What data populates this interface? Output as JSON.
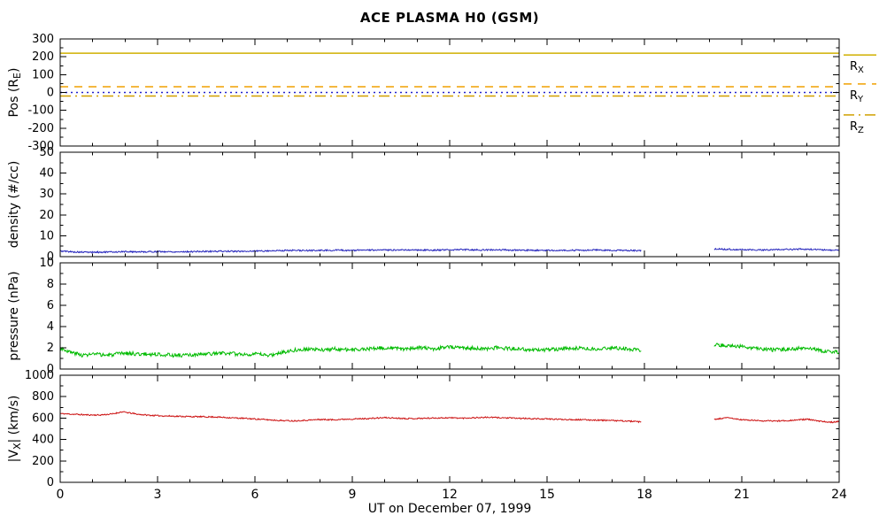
{
  "chart_data": {
    "type": "line",
    "title": "ACE PLASMA H0 (GSM)",
    "x_axis": {
      "label": "UT on December 07, 1999",
      "min": 0,
      "max": 24,
      "major_ticks": [
        0,
        3,
        6,
        9,
        12,
        15,
        18,
        21,
        24
      ],
      "minor_step": 1
    },
    "data_gap_hours": [
      17.9,
      20.15
    ],
    "colors": {
      "background": "#ffffff",
      "axis": "#000000",
      "rx": "#d1b000",
      "ry": "#f0a000",
      "rz": "#d1a000",
      "zero_line": "#2222cc",
      "density": "#2222bb",
      "pressure": "#00bb00",
      "speed": "#cc1111"
    },
    "panels": [
      {
        "id": "position",
        "ylabel": {
          "pre": "Pos (R",
          "sub": "E",
          "post": ")"
        },
        "ymin": -300,
        "ymax": 300,
        "yticks": [
          -300,
          -200,
          -100,
          0,
          100,
          200,
          300
        ],
        "yminor_step": 50,
        "ref_lines": [
          {
            "name": "RX",
            "value": 220,
            "style": "solid",
            "color_key": "rx"
          },
          {
            "name": "RY",
            "value": 32,
            "style": "dashed",
            "color_key": "ry"
          },
          {
            "name": "RZ",
            "value": -20,
            "style": "dashdot",
            "color_key": "rz"
          },
          {
            "name": "zero",
            "value": 0,
            "style": "dotted",
            "color_key": "zero_line"
          }
        ],
        "legend": [
          {
            "label": {
              "pre": "R",
              "sub": "X"
            },
            "style": "solid",
            "color_key": "rx",
            "y_frac": 0.15
          },
          {
            "label": {
              "pre": "R",
              "sub": "Y"
            },
            "style": "dashed",
            "color_key": "ry",
            "y_frac": 0.42
          },
          {
            "label": {
              "pre": "R",
              "sub": "Z"
            },
            "style": "dashdot",
            "color_key": "rz",
            "y_frac": 0.71
          }
        ]
      },
      {
        "id": "density",
        "ylabel": {
          "pre": "density (#/cc)",
          "sub": "",
          "post": ""
        },
        "ymin": 0,
        "ymax": 50,
        "yticks": [
          0,
          10,
          20,
          30,
          40,
          50
        ],
        "yminor_step": 5,
        "series": {
          "color_key": "density",
          "noise": 0.35,
          "seed": 5,
          "segments": [
            [
              [
                0,
                2.7
              ],
              [
                0.5,
                2.2
              ],
              [
                1,
                2.1
              ],
              [
                1.5,
                2.2
              ],
              [
                2,
                2.4
              ],
              [
                2.5,
                2.3
              ],
              [
                3,
                2.4
              ],
              [
                3.5,
                2.3
              ],
              [
                4,
                2.4
              ],
              [
                4.5,
                2.5
              ],
              [
                5,
                2.6
              ],
              [
                5.5,
                2.5
              ],
              [
                6,
                2.7
              ],
              [
                6.5,
                2.8
              ],
              [
                7,
                3.0
              ],
              [
                7.5,
                2.9
              ],
              [
                8,
                3.0
              ],
              [
                8.5,
                3.1
              ],
              [
                9,
                3.0
              ],
              [
                9.5,
                3.2
              ],
              [
                10,
                3.1
              ],
              [
                10.5,
                3.3
              ],
              [
                11,
                3.2
              ],
              [
                11.5,
                3.1
              ],
              [
                12,
                3.3
              ],
              [
                12.5,
                3.4
              ],
              [
                13,
                3.2
              ],
              [
                13.5,
                3.3
              ],
              [
                14,
                3.1
              ],
              [
                14.5,
                3.0
              ],
              [
                15,
                3.0
              ],
              [
                15.5,
                3.1
              ],
              [
                16,
                3.0
              ],
              [
                16.5,
                3.2
              ],
              [
                17,
                3.1
              ],
              [
                17.5,
                3.0
              ],
              [
                17.9,
                2.9
              ]
            ],
            [
              [
                20.15,
                3.7
              ],
              [
                20.5,
                3.5
              ],
              [
                21,
                3.4
              ],
              [
                21.5,
                3.2
              ],
              [
                22,
                3.3
              ],
              [
                22.5,
                3.5
              ],
              [
                23,
                3.6
              ],
              [
                23.5,
                3.2
              ],
              [
                24,
                3.0
              ]
            ]
          ]
        }
      },
      {
        "id": "pressure",
        "ylabel": {
          "pre": "pressure (nPa)",
          "sub": "",
          "post": ""
        },
        "ymin": 0,
        "ymax": 10,
        "yticks": [
          0,
          2,
          4,
          6,
          8,
          10
        ],
        "yminor_step": 1,
        "series": {
          "color_key": "pressure",
          "noise": 0.18,
          "seed": 3,
          "segments": [
            [
              [
                0,
                2.0
              ],
              [
                0.3,
                1.6
              ],
              [
                0.7,
                1.3
              ],
              [
                1,
                1.4
              ],
              [
                1.5,
                1.3
              ],
              [
                2,
                1.5
              ],
              [
                2.5,
                1.4
              ],
              [
                3,
                1.4
              ],
              [
                3.5,
                1.3
              ],
              [
                4,
                1.3
              ],
              [
                4.5,
                1.4
              ],
              [
                5,
                1.5
              ],
              [
                5.5,
                1.4
              ],
              [
                6,
                1.4
              ],
              [
                6.5,
                1.3
              ],
              [
                7,
                1.7
              ],
              [
                7.5,
                1.9
              ],
              [
                8,
                1.8
              ],
              [
                8.5,
                1.9
              ],
              [
                9,
                1.8
              ],
              [
                9.5,
                1.9
              ],
              [
                10,
                2.0
              ],
              [
                10.5,
                1.9
              ],
              [
                11,
                2.0
              ],
              [
                11.5,
                1.9
              ],
              [
                12,
                2.1
              ],
              [
                12.5,
                2.0
              ],
              [
                13,
                1.9
              ],
              [
                13.5,
                2.0
              ],
              [
                14,
                1.9
              ],
              [
                14.5,
                1.8
              ],
              [
                15,
                1.8
              ],
              [
                15.5,
                1.9
              ],
              [
                16,
                2.0
              ],
              [
                16.5,
                1.9
              ],
              [
                17,
                2.0
              ],
              [
                17.5,
                1.9
              ],
              [
                17.9,
                1.7
              ]
            ],
            [
              [
                20.15,
                2.3
              ],
              [
                20.5,
                2.2
              ],
              [
                21,
                2.1
              ],
              [
                21.5,
                1.9
              ],
              [
                22,
                1.8
              ],
              [
                22.5,
                1.9
              ],
              [
                23,
                2.0
              ],
              [
                23.5,
                1.7
              ],
              [
                24,
                1.6
              ]
            ]
          ]
        }
      },
      {
        "id": "speed",
        "ylabel": {
          "pre": "|V",
          "sub": "X",
          "post": "| (km/s)"
        },
        "ymin": 0,
        "ymax": 1000,
        "yticks": [
          0,
          200,
          400,
          600,
          800,
          1000
        ],
        "yminor_step": 100,
        "series": {
          "color_key": "speed",
          "noise": 6,
          "seed": 11,
          "segments": [
            [
              [
                0,
                642
              ],
              [
                0.4,
                636
              ],
              [
                0.8,
                630
              ],
              [
                1.2,
                628
              ],
              [
                1.6,
                638
              ],
              [
                1.9,
                658
              ],
              [
                2.1,
                650
              ],
              [
                2.4,
                635
              ],
              [
                2.8,
                625
              ],
              [
                3.2,
                620
              ],
              [
                3.6,
                617
              ],
              [
                4,
                614
              ],
              [
                4.4,
                612
              ],
              [
                4.8,
                610
              ],
              [
                5.2,
                604
              ],
              [
                5.6,
                598
              ],
              [
                6,
                592
              ],
              [
                6.4,
                584
              ],
              [
                6.8,
                577
              ],
              [
                7.2,
                574
              ],
              [
                7.6,
                580
              ],
              [
                8,
                587
              ],
              [
                8.4,
                584
              ],
              [
                8.8,
                590
              ],
              [
                9.2,
                593
              ],
              [
                9.6,
                597
              ],
              [
                10,
                604
              ],
              [
                10.4,
                599
              ],
              [
                10.8,
                595
              ],
              [
                11.2,
                598
              ],
              [
                11.6,
                601
              ],
              [
                12,
                603
              ],
              [
                12.4,
                599
              ],
              [
                12.8,
                604
              ],
              [
                13.2,
                607
              ],
              [
                13.6,
                603
              ],
              [
                14,
                599
              ],
              [
                14.4,
                595
              ],
              [
                14.8,
                593
              ],
              [
                15.2,
                590
              ],
              [
                15.6,
                587
              ],
              [
                16,
                585
              ],
              [
                16.4,
                582
              ],
              [
                16.8,
                579
              ],
              [
                17.2,
                575
              ],
              [
                17.6,
                570
              ],
              [
                17.9,
                563
              ]
            ],
            [
              [
                20.15,
                586
              ],
              [
                20.4,
                598
              ],
              [
                20.6,
                603
              ],
              [
                20.8,
                592
              ],
              [
                21,
                584
              ],
              [
                21.4,
                578
              ],
              [
                21.8,
                573
              ],
              [
                22.2,
                574
              ],
              [
                22.6,
                580
              ],
              [
                23,
                589
              ],
              [
                23.2,
                580
              ],
              [
                23.5,
                566
              ],
              [
                23.8,
                562
              ],
              [
                24,
                572
              ]
            ]
          ]
        }
      }
    ]
  }
}
